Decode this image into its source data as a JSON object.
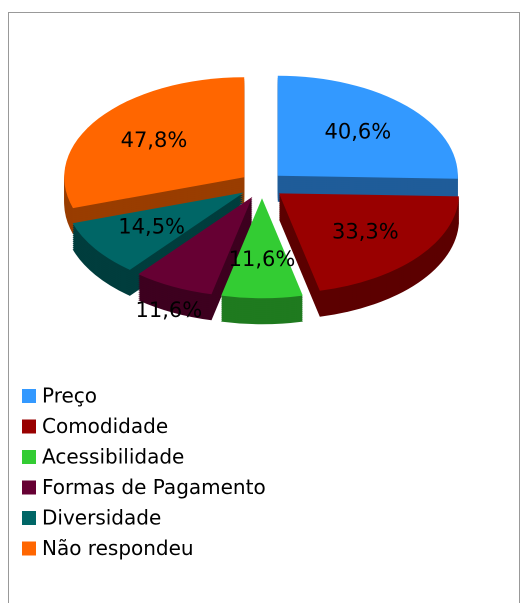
{
  "chart_data": {
    "type": "pie",
    "categories": [
      "Preço",
      "Comodidade",
      "Acessibilidade",
      "Formas de Pagamento",
      "Diversidade",
      "Não respondeu"
    ],
    "values": [
      40.6,
      33.3,
      11.6,
      11.6,
      14.5,
      47.8
    ],
    "value_labels": [
      "40,6%",
      "33,3%",
      "11,6%",
      "11,6%",
      "14,5%",
      "47,8%"
    ],
    "colors": [
      "#3399ff",
      "#990000",
      "#33cc33",
      "#660033",
      "#006666",
      "#ff6600"
    ],
    "legend": "bottom-left"
  }
}
